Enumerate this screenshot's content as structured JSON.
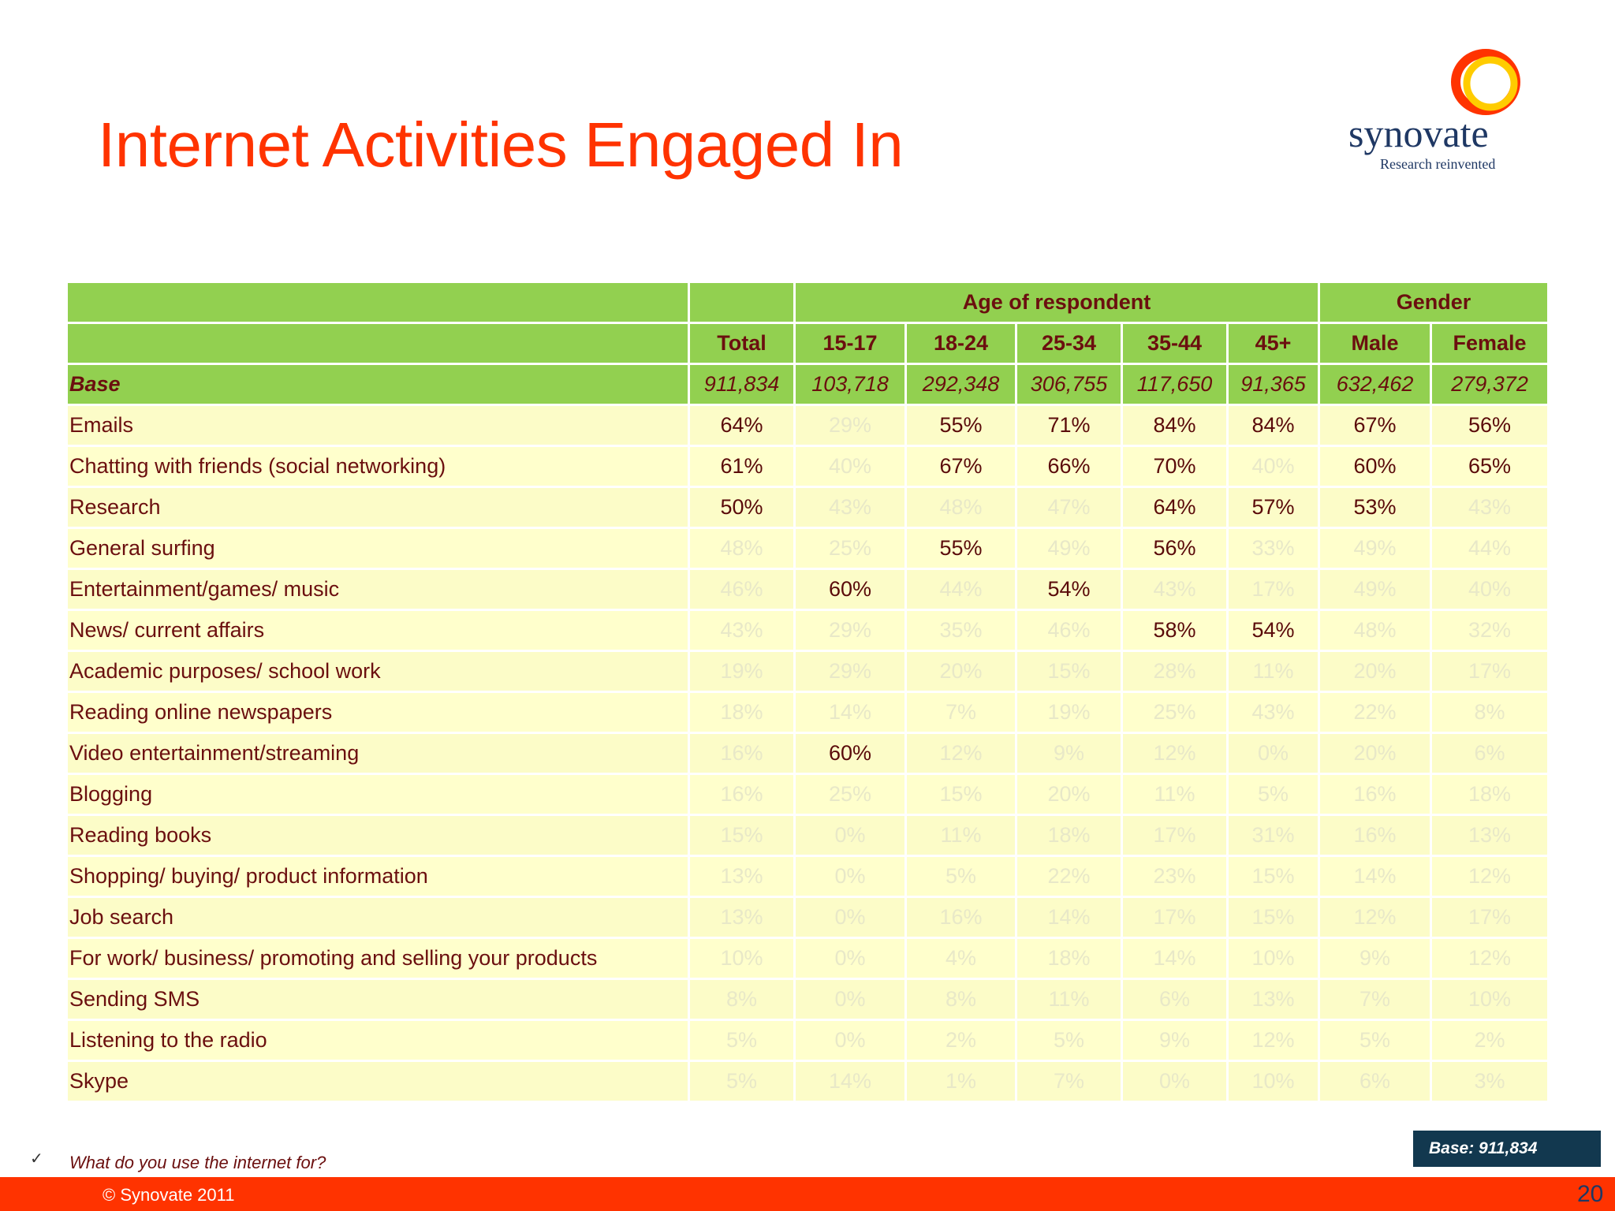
{
  "title": "Internet Activities Engaged In",
  "logo": {
    "word": "synovate",
    "tagline": "Research reinvented"
  },
  "table": {
    "group_age": "Age of respondent",
    "group_gender": "Gender",
    "columns": [
      "Total",
      "15-17",
      "18-24",
      "25-34",
      "35-44",
      "45+",
      "Male",
      "Female"
    ],
    "base": {
      "label": "Base",
      "values": [
        "911,834",
        "103,718",
        "292,348",
        "306,755",
        "117,650",
        "91,365",
        "632,462",
        "279,372"
      ]
    },
    "rows": [
      {
        "label": "Emails",
        "values": [
          "64%",
          "29%",
          "55%",
          "71%",
          "84%",
          "84%",
          "67%",
          "56%"
        ],
        "highlight": [
          1,
          0,
          1,
          1,
          1,
          1,
          1,
          1
        ]
      },
      {
        "label": "Chatting with friends (social networking)",
        "values": [
          "61%",
          "40%",
          "67%",
          "66%",
          "70%",
          "40%",
          "60%",
          "65%"
        ],
        "highlight": [
          1,
          0,
          1,
          1,
          1,
          0,
          1,
          1
        ]
      },
      {
        "label": "Research",
        "values": [
          "50%",
          "43%",
          "48%",
          "47%",
          "64%",
          "57%",
          "53%",
          "43%"
        ],
        "highlight": [
          1,
          0,
          0,
          0,
          1,
          1,
          1,
          0
        ]
      },
      {
        "label": "General surfing",
        "values": [
          "48%",
          "25%",
          "55%",
          "49%",
          "56%",
          "33%",
          "49%",
          "44%"
        ],
        "highlight": [
          0,
          0,
          1,
          0,
          1,
          0,
          0,
          0
        ]
      },
      {
        "label": "Entertainment/games/ music",
        "values": [
          "46%",
          "60%",
          "44%",
          "54%",
          "43%",
          "17%",
          "49%",
          "40%"
        ],
        "highlight": [
          0,
          1,
          0,
          1,
          0,
          0,
          0,
          0
        ]
      },
      {
        "label": "News/ current affairs",
        "values": [
          "43%",
          "29%",
          "35%",
          "46%",
          "58%",
          "54%",
          "48%",
          "32%"
        ],
        "highlight": [
          0,
          0,
          0,
          0,
          1,
          1,
          0,
          0
        ]
      },
      {
        "label": "Academic purposes/ school work",
        "values": [
          "19%",
          "29%",
          "20%",
          "15%",
          "28%",
          "11%",
          "20%",
          "17%"
        ],
        "highlight": [
          0,
          0,
          0,
          0,
          0,
          0,
          0,
          0
        ]
      },
      {
        "label": "Reading online newspapers",
        "values": [
          "18%",
          "14%",
          "7%",
          "19%",
          "25%",
          "43%",
          "22%",
          "8%"
        ],
        "highlight": [
          0,
          0,
          0,
          0,
          0,
          0,
          0,
          0
        ]
      },
      {
        "label": "Video entertainment/streaming",
        "values": [
          "16%",
          "60%",
          "12%",
          "9%",
          "12%",
          "0%",
          "20%",
          "6%"
        ],
        "highlight": [
          0,
          1,
          0,
          0,
          0,
          0,
          0,
          0
        ]
      },
      {
        "label": "Blogging",
        "values": [
          "16%",
          "25%",
          "15%",
          "20%",
          "11%",
          "5%",
          "16%",
          "18%"
        ],
        "highlight": [
          0,
          0,
          0,
          0,
          0,
          0,
          0,
          0
        ]
      },
      {
        "label": "Reading books",
        "values": [
          "15%",
          "0%",
          "11%",
          "18%",
          "17%",
          "31%",
          "16%",
          "13%"
        ],
        "highlight": [
          0,
          0,
          0,
          0,
          0,
          0,
          0,
          0
        ]
      },
      {
        "label": "Shopping/ buying/ product information",
        "values": [
          "13%",
          "0%",
          "5%",
          "22%",
          "23%",
          "15%",
          "14%",
          "12%"
        ],
        "highlight": [
          0,
          0,
          0,
          0,
          0,
          0,
          0,
          0
        ]
      },
      {
        "label": "Job search",
        "values": [
          "13%",
          "0%",
          "16%",
          "14%",
          "17%",
          "15%",
          "12%",
          "17%"
        ],
        "highlight": [
          0,
          0,
          0,
          0,
          0,
          0,
          0,
          0
        ]
      },
      {
        "label": "For work/ business/ promoting and selling your products",
        "values": [
          "10%",
          "0%",
          "4%",
          "18%",
          "14%",
          "10%",
          "9%",
          "12%"
        ],
        "highlight": [
          0,
          0,
          0,
          0,
          0,
          0,
          0,
          0
        ]
      },
      {
        "label": "Sending SMS",
        "values": [
          "8%",
          "0%",
          "8%",
          "11%",
          "6%",
          "13%",
          "7%",
          "10%"
        ],
        "highlight": [
          0,
          0,
          0,
          0,
          0,
          0,
          0,
          0
        ]
      },
      {
        "label": "Listening to the radio",
        "values": [
          "5%",
          "0%",
          "2%",
          "5%",
          "9%",
          "12%",
          "5%",
          "2%"
        ],
        "highlight": [
          0,
          0,
          0,
          0,
          0,
          0,
          0,
          0
        ]
      },
      {
        "label": "Skype",
        "values": [
          "5%",
          "14%",
          "1%",
          "7%",
          "0%",
          "10%",
          "6%",
          "3%"
        ],
        "highlight": [
          0,
          0,
          0,
          0,
          0,
          0,
          0,
          0
        ]
      }
    ]
  },
  "footnote_mark": "✓",
  "footnote": "What do you use the internet for?",
  "base_box": "Base: 911,834",
  "copyright": "© Synovate 2011",
  "page_number": "20",
  "colors": {
    "title": "#ff3300",
    "header_green": "#92d050",
    "row_yellow": "#ffffcc",
    "footer": "#ff3300",
    "base_box": "#12384f"
  }
}
